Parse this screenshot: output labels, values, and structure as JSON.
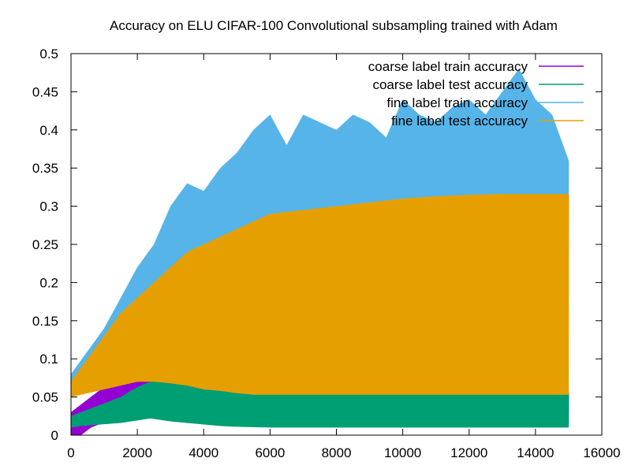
{
  "chart_data": {
    "type": "line",
    "title": "Accuracy on ELU CIFAR-100 Convolutional subsampling trained with Adam",
    "xlabel": "",
    "ylabel": "",
    "xlim": [
      0,
      16000
    ],
    "ylim": [
      0,
      0.5
    ],
    "x_ticks": [
      "0",
      "2000",
      "4000",
      "6000",
      "8000",
      "10000",
      "12000",
      "14000",
      "16000"
    ],
    "y_ticks": [
      "0",
      "0.05",
      "0.1",
      "0.15",
      "0.2",
      "0.25",
      "0.3",
      "0.35",
      "0.4",
      "0.45",
      "0.5"
    ],
    "grid": false,
    "legend_position": "top-right",
    "series": [
      {
        "name": "coarse label train accuracy",
        "color": "#9400d3",
        "x": [
          0,
          300,
          600,
          900,
          1200,
          1500,
          1800,
          2100,
          2400,
          2700,
          3000,
          4000,
          5000,
          6000,
          8000,
          10000,
          12000,
          14000,
          15000
        ],
        "low": [
          0.0,
          0.0,
          0.01,
          0.015,
          0.02,
          0.025,
          0.03,
          0.03,
          0.035,
          0.035,
          0.03,
          0.02,
          0.015,
          0.012,
          0.012,
          0.012,
          0.012,
          0.012,
          0.012
        ],
        "high": [
          0.03,
          0.04,
          0.05,
          0.06,
          0.07,
          0.08,
          0.09,
          0.085,
          0.08,
          0.08,
          0.075,
          0.07,
          0.06,
          0.058,
          0.057,
          0.057,
          0.057,
          0.056,
          0.056
        ]
      },
      {
        "name": "coarse label test accuracy",
        "color": "#009e73",
        "x": [
          0,
          300,
          600,
          900,
          1200,
          1500,
          1800,
          2100,
          2400,
          2700,
          3000,
          3500,
          4000,
          4500,
          5000,
          6000,
          8000,
          10000,
          12000,
          14000,
          15000
        ],
        "low": [
          0.01,
          0.012,
          0.013,
          0.014,
          0.015,
          0.016,
          0.018,
          0.02,
          0.022,
          0.02,
          0.018,
          0.016,
          0.014,
          0.012,
          0.011,
          0.01,
          0.01,
          0.01,
          0.01,
          0.01,
          0.01
        ],
        "high": [
          0.025,
          0.03,
          0.035,
          0.04,
          0.045,
          0.05,
          0.058,
          0.065,
          0.07,
          0.075,
          0.072,
          0.07,
          0.066,
          0.062,
          0.058,
          0.055,
          0.054,
          0.054,
          0.054,
          0.054,
          0.054
        ]
      },
      {
        "name": "fine label train accuracy",
        "color": "#56b4e9",
        "x": [
          0,
          500,
          1000,
          1500,
          2000,
          2500,
          3000,
          3500,
          4000,
          4500,
          5000,
          5500,
          6000,
          6500,
          7000,
          7500,
          8000,
          8500,
          9000,
          9500,
          10000,
          10500,
          11000,
          11500,
          12000,
          12500,
          13000,
          13500,
          14000,
          14500,
          15000
        ],
        "low": [
          0.05,
          0.07,
          0.08,
          0.1,
          0.11,
          0.13,
          0.15,
          0.16,
          0.17,
          0.18,
          0.19,
          0.2,
          0.21,
          0.215,
          0.22,
          0.225,
          0.23,
          0.235,
          0.24,
          0.24,
          0.245,
          0.25,
          0.25,
          0.25,
          0.25,
          0.25,
          0.25,
          0.25,
          0.25,
          0.25,
          0.25
        ],
        "high": [
          0.08,
          0.11,
          0.14,
          0.18,
          0.22,
          0.25,
          0.3,
          0.33,
          0.32,
          0.35,
          0.37,
          0.4,
          0.42,
          0.38,
          0.42,
          0.41,
          0.4,
          0.42,
          0.41,
          0.39,
          0.44,
          0.42,
          0.41,
          0.43,
          0.44,
          0.42,
          0.45,
          0.48,
          0.44,
          0.42,
          0.36
        ]
      },
      {
        "name": "fine label test accuracy",
        "color": "#e69f00",
        "x": [
          0,
          500,
          1000,
          1500,
          2000,
          2500,
          3000,
          3500,
          4000,
          4500,
          5000,
          5500,
          6000,
          7000,
          8000,
          9000,
          10000,
          11000,
          12000,
          13000,
          14000,
          15000
        ],
        "low": [
          0.05,
          0.055,
          0.06,
          0.065,
          0.07,
          0.07,
          0.068,
          0.065,
          0.06,
          0.058,
          0.055,
          0.053,
          0.053,
          0.053,
          0.053,
          0.053,
          0.053,
          0.053,
          0.053,
          0.053,
          0.053,
          0.053
        ],
        "high": [
          0.07,
          0.1,
          0.13,
          0.16,
          0.18,
          0.2,
          0.22,
          0.24,
          0.25,
          0.26,
          0.27,
          0.28,
          0.29,
          0.295,
          0.3,
          0.305,
          0.31,
          0.313,
          0.315,
          0.316,
          0.316,
          0.316
        ]
      }
    ]
  }
}
